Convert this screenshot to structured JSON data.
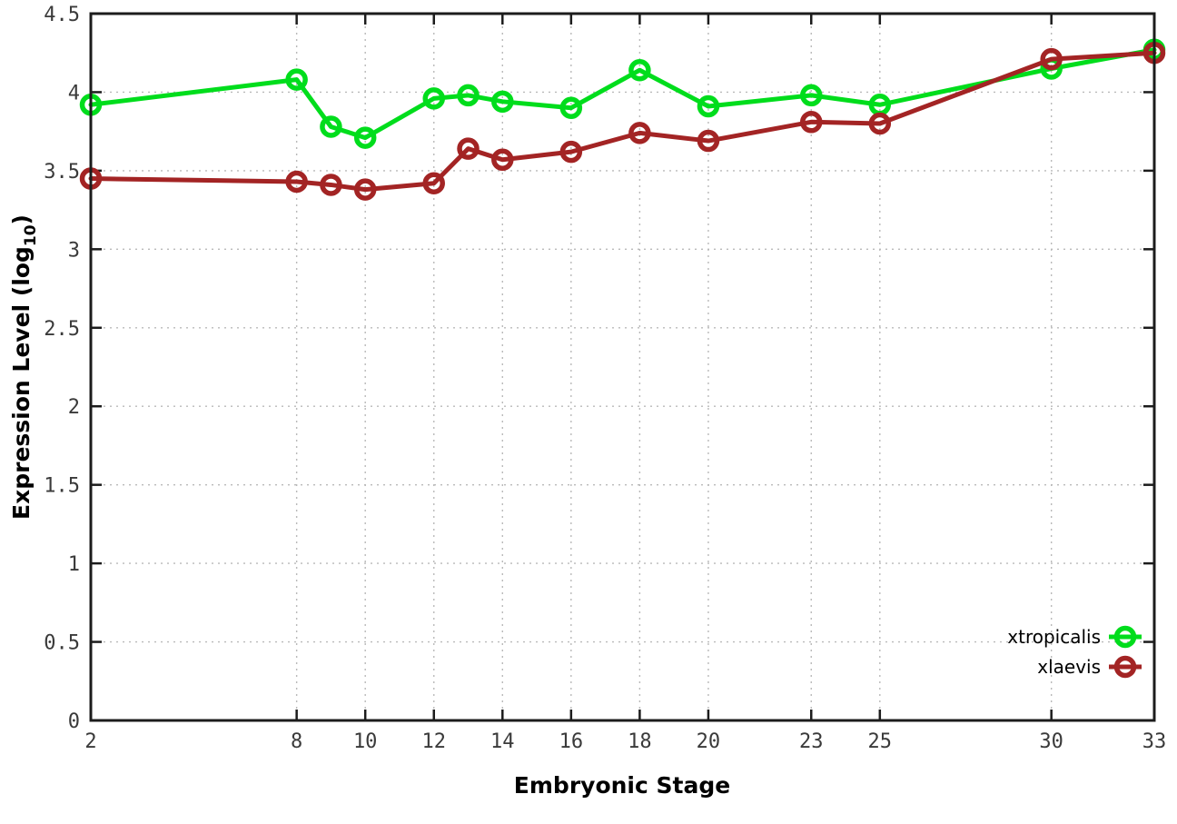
{
  "figure": {
    "xlabel": "Embryonic Stage",
    "ylabel_prefix": "Expression Level (log",
    "ylabel_sub": "10",
    "ylabel_suffix": ")"
  },
  "chart_data": {
    "type": "line",
    "x": [
      2,
      8,
      9,
      10,
      12,
      13,
      14,
      16,
      18,
      20,
      23,
      25,
      30,
      33
    ],
    "series": [
      {
        "name": "xtropicalis",
        "color": "#00dd1c",
        "values": [
          3.92,
          4.08,
          3.78,
          3.71,
          3.96,
          3.98,
          3.94,
          3.9,
          4.14,
          3.91,
          3.98,
          3.92,
          4.15,
          4.27
        ]
      },
      {
        "name": "xlaevis",
        "color": "#a32424",
        "values": [
          3.45,
          3.43,
          3.41,
          3.38,
          3.42,
          3.64,
          3.57,
          3.62,
          3.74,
          3.69,
          3.81,
          3.8,
          4.21,
          4.25
        ]
      }
    ],
    "title": "",
    "xlabel": "Embryonic Stage",
    "ylabel": "Expression Level (log10)",
    "xticks": [
      2,
      8,
      10,
      12,
      14,
      16,
      18,
      20,
      23,
      25,
      30,
      33
    ],
    "yticks": [
      0,
      0.5,
      1,
      1.5,
      2,
      2.5,
      3,
      3.5,
      4,
      4.5
    ],
    "xlim": [
      2,
      33
    ],
    "ylim": [
      0,
      4.5
    ],
    "grid": true,
    "grid_style": "dotted",
    "legend_position": "bottom-right",
    "marker": "open-circle",
    "legend": [
      "xtropicalis",
      "xlaevis"
    ]
  },
  "style_colors": {
    "grid": "#b9b9b9",
    "border": "#1c1c1c",
    "tick_label": "#3a3a3a",
    "background": "#ffffff"
  }
}
